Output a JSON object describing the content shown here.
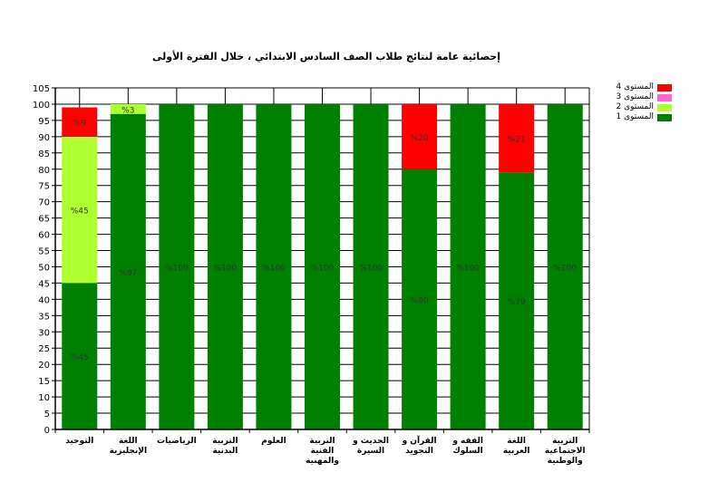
{
  "chart_data": {
    "type": "stacked_bar",
    "title": "إحصائية عامة لنتائج طلاب الصف السادس الابتدائي ، خلال الفترة الأولى",
    "categories": [
      "التوحيد",
      "اللغة الإنجليزية",
      "الرياضيات",
      "التربية البدنية",
      "العلوم",
      "التربية الفنية والمهنية",
      "الحديث و السيرة",
      "القرآن و التجويد",
      "الفقه و السلوك",
      "اللغة العربية",
      "التربية الاجتماعية والوطنية"
    ],
    "series": [
      {
        "name": "المستوى 1",
        "color": "#008000",
        "values": [
          45,
          97,
          100,
          100,
          100,
          100,
          100,
          80,
          100,
          79,
          100
        ]
      },
      {
        "name": "المستوى 2",
        "color": "#adff2f",
        "values": [
          45,
          3,
          0,
          0,
          0,
          0,
          0,
          0,
          0,
          0,
          0
        ]
      },
      {
        "name": "المستوى 3",
        "color": "#ff66cc",
        "values": [
          0,
          0,
          0,
          0,
          0,
          0,
          0,
          0,
          0,
          0,
          0
        ]
      },
      {
        "name": "المستوى 4",
        "color": "#ff0000",
        "values": [
          9,
          0,
          0,
          0,
          0,
          0,
          0,
          20,
          0,
          21,
          0
        ]
      }
    ],
    "data_labels": [
      [
        "%45",
        "%97",
        "%100",
        "%100",
        "%100",
        "%100",
        "%100",
        "%80",
        "%100",
        "%79",
        "%100"
      ],
      [
        "%45",
        "%3",
        "",
        "",
        "",
        "",
        "",
        "",
        "",
        "",
        ""
      ],
      [
        "",
        "",
        "",
        "",
        "",
        "",
        "",
        "",
        "",
        "",
        ""
      ],
      [
        "%9",
        "",
        "",
        "",
        "",
        "",
        "",
        "%20",
        "",
        "%21",
        ""
      ]
    ],
    "ylim": [
      0,
      105
    ],
    "yticks": [
      0,
      5,
      10,
      15,
      20,
      25,
      30,
      35,
      40,
      45,
      50,
      55,
      60,
      65,
      70,
      75,
      80,
      85,
      90,
      95,
      100,
      105
    ],
    "grid": true,
    "legend_position": "top-right",
    "legend_order": [
      "المستوى 4",
      "المستوى 3",
      "المستوى 2",
      "المستوى 1"
    ]
  }
}
